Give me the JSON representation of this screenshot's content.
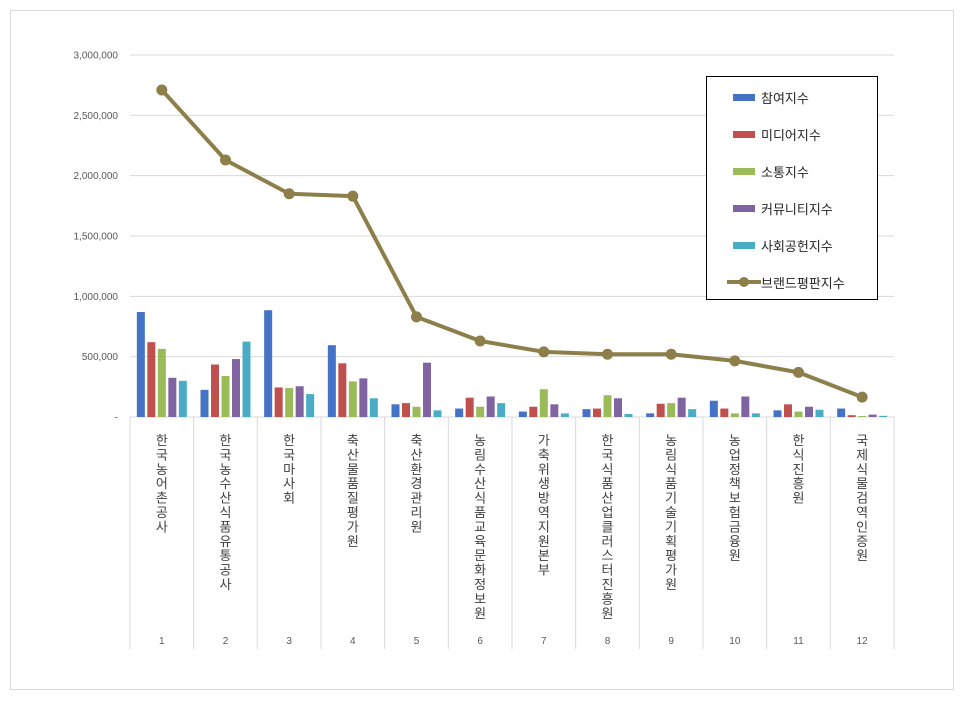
{
  "chart_data": {
    "type": "bar",
    "title": "",
    "xlabel": "",
    "ylabel": "",
    "ylim": [
      0,
      3000000
    ],
    "yticks": [
      "-",
      "500,000",
      "1,000,000",
      "1,500,000",
      "2,000,000",
      "2,500,000",
      "3,000,000"
    ],
    "grid": true,
    "legend_position": "top-right",
    "categories": [
      "1",
      "2",
      "3",
      "4",
      "5",
      "6",
      "7",
      "8",
      "9",
      "10",
      "11",
      "12"
    ],
    "category_names": [
      "한국농어촌공사",
      "한국농수산식품유통공사",
      "한국마사회",
      "축산물품질평가원",
      "축산환경관리원",
      "농림수산식품교육문화정보원",
      "가축위생방역지원본부",
      "한국식품산업클러스터진흥원",
      "농림식품기술기획평가원",
      "농업정책보험금융원",
      "한식진흥원",
      "국제식물검역인증원"
    ],
    "series": [
      {
        "name": "참여지수",
        "kind": "bar",
        "color": "#4472c4",
        "values": [
          870000,
          225000,
          885000,
          595000,
          105000,
          70000,
          45000,
          65000,
          30000,
          135000,
          55000,
          70000
        ]
      },
      {
        "name": "미디어지수",
        "kind": "bar",
        "color": "#c0504d",
        "values": [
          620000,
          435000,
          245000,
          445000,
          115000,
          160000,
          85000,
          70000,
          110000,
          70000,
          105000,
          15000
        ]
      },
      {
        "name": "소통지수",
        "kind": "bar",
        "color": "#9bbb59",
        "values": [
          565000,
          340000,
          240000,
          295000,
          85000,
          85000,
          230000,
          180000,
          115000,
          30000,
          45000,
          8000
        ]
      },
      {
        "name": "커뮤니티지수",
        "kind": "bar",
        "color": "#8064a2",
        "values": [
          325000,
          480000,
          255000,
          320000,
          450000,
          170000,
          105000,
          155000,
          160000,
          170000,
          85000,
          20000
        ]
      },
      {
        "name": "사회공헌지수",
        "kind": "bar",
        "color": "#4bacc6",
        "values": [
          300000,
          625000,
          190000,
          155000,
          55000,
          115000,
          30000,
          25000,
          65000,
          30000,
          60000,
          10000
        ]
      },
      {
        "name": "브랜드평판지수",
        "kind": "line",
        "color": "#8c7f4a",
        "values": [
          2710000,
          2130000,
          1850000,
          1830000,
          830000,
          630000,
          540000,
          520000,
          520000,
          465000,
          370000,
          165000
        ]
      }
    ]
  }
}
